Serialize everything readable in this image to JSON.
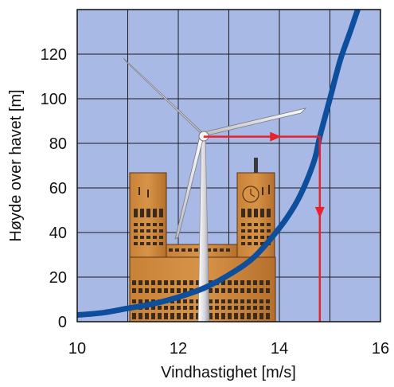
{
  "chart_data": {
    "type": "line",
    "title": "",
    "xlabel": "Vindhastighet [m/s]",
    "ylabel": "Høyde over havet [m]",
    "xlim": [
      10,
      16
    ],
    "ylim": [
      0,
      140
    ],
    "x_ticks": [
      10,
      12,
      14,
      16
    ],
    "y_ticks": [
      0,
      20,
      40,
      60,
      80,
      100,
      120
    ],
    "grid": true,
    "series": [
      {
        "x": [
          10.0,
          10.5,
          11.0,
          11.5,
          12.0,
          12.5,
          13.0,
          13.5,
          14.0,
          14.3,
          14.5,
          14.7,
          14.8,
          15.0,
          15.2,
          15.4,
          15.55
        ],
        "y": [
          3,
          4,
          6,
          8,
          11,
          15,
          21,
          29,
          42,
          52,
          61,
          73,
          83,
          100,
          117,
          130,
          140
        ]
      }
    ],
    "annotations": [
      {
        "type": "arrow",
        "x": [
          12.5,
          14.8
        ],
        "y": [
          83,
          83
        ]
      },
      {
        "type": "arrow",
        "x": [
          14.8,
          14.8
        ],
        "y": [
          83,
          0
        ]
      }
    ],
    "colors": {
      "plot_background": "#a9b9e6",
      "grid": "#1a1a1a",
      "curve": "#0d4f9c",
      "arrows": "#e8212c",
      "building": "#c87f36",
      "turbine": "#e4e4e8"
    }
  }
}
